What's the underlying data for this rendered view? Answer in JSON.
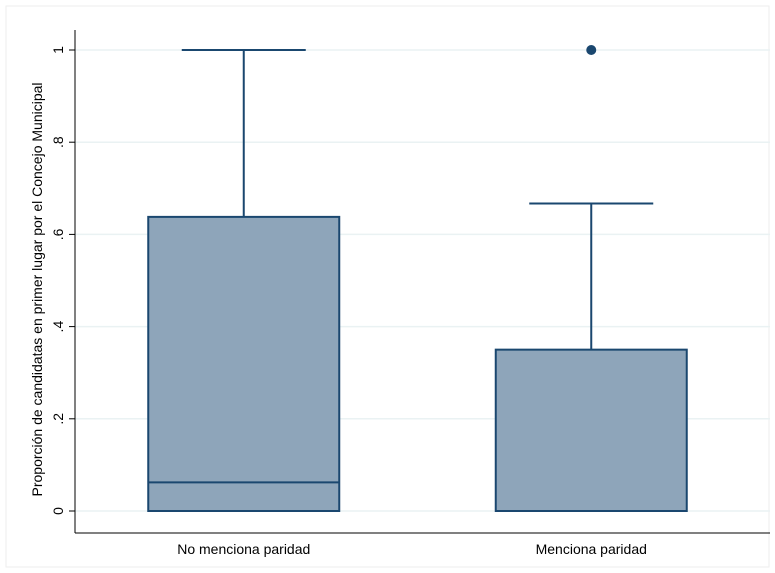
{
  "chart_data": {
    "type": "box",
    "title": "",
    "xlabel": "",
    "ylabel": "Proporción de candidatas en primer lugar por el Concejo Municipal",
    "ylim": [
      0,
      1
    ],
    "yticks": [
      {
        "value": 0,
        "label": "0"
      },
      {
        "value": 0.2,
        "label": ".2"
      },
      {
        "value": 0.4,
        "label": ".4"
      },
      {
        "value": 0.6,
        "label": ".6"
      },
      {
        "value": 0.8,
        "label": ".8"
      },
      {
        "value": 1,
        "label": "1"
      }
    ],
    "grid": true,
    "categories": [
      "No menciona paridad",
      "Menciona paridad"
    ],
    "boxes": [
      {
        "category": "No menciona paridad",
        "whisker_low": 0,
        "q1": 0,
        "median": 0.062,
        "q3": 0.638,
        "whisker_high": 1,
        "outliers": []
      },
      {
        "category": "Menciona paridad",
        "whisker_low": 0,
        "q1": 0,
        "median": 0,
        "q3": 0.35,
        "whisker_high": 0.667,
        "outliers": [
          1
        ]
      }
    ],
    "colors": {
      "box_fill": "#8EA5BA",
      "box_stroke": "#1A476F",
      "gridline": "#EAF2F3",
      "outlier": "#1A476F",
      "axis": "#000000"
    }
  }
}
